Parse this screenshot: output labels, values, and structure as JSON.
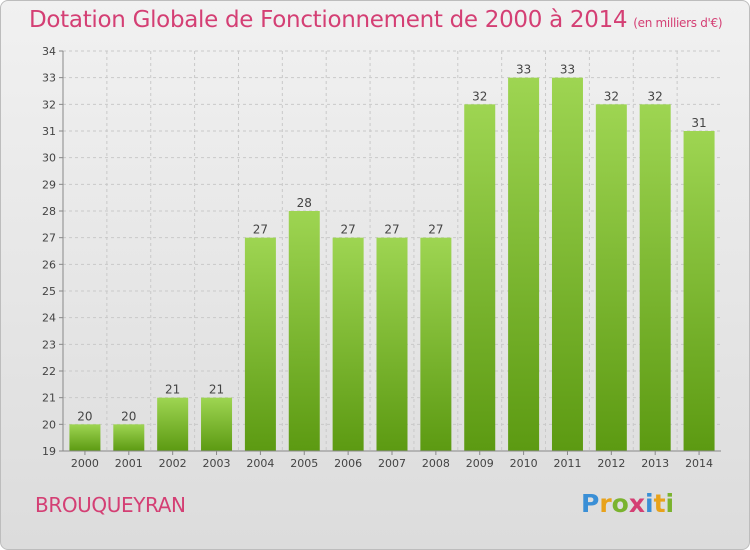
{
  "title": "Dotation Globale de Fonctionnement de 2000 à 2014",
  "unit_note": "(en milliers d'€)",
  "commune": "BROUQUEYRAN",
  "logo": {
    "text": "Proxiti",
    "letters": [
      {
        "ch": "P",
        "color": "#3a8fd6"
      },
      {
        "ch": "r",
        "color": "#e8a21a"
      },
      {
        "ch": "o",
        "color": "#7ab32e"
      },
      {
        "ch": "x",
        "color": "#d43f74"
      },
      {
        "ch": "i",
        "color": "#3a8fd6"
      },
      {
        "ch": "t",
        "color": "#e8a21a"
      },
      {
        "ch": "i",
        "color": "#7ab32e"
      }
    ]
  },
  "colors": {
    "bar_top": "#9ed552",
    "bar_bottom": "#5c9a12",
    "title": "#d43f74"
  },
  "chart_data": {
    "type": "bar",
    "categories": [
      "2000",
      "2001",
      "2002",
      "2003",
      "2004",
      "2005",
      "2006",
      "2007",
      "2008",
      "2009",
      "2010",
      "2011",
      "2012",
      "2013",
      "2014"
    ],
    "values": [
      20,
      20,
      21,
      21,
      27,
      28,
      27,
      27,
      27,
      32,
      33,
      33,
      32,
      32,
      31
    ],
    "data_labels": [
      "20",
      "20",
      "21",
      "21",
      "27",
      "28",
      "27",
      "27",
      "27",
      "32",
      "33",
      "33",
      "32",
      "32",
      "31"
    ],
    "ylim": [
      19,
      34
    ],
    "yticks": [
      19,
      20,
      21,
      22,
      23,
      24,
      25,
      26,
      27,
      28,
      29,
      30,
      31,
      32,
      33,
      34
    ],
    "grid": true,
    "xlabel": "",
    "ylabel": ""
  }
}
